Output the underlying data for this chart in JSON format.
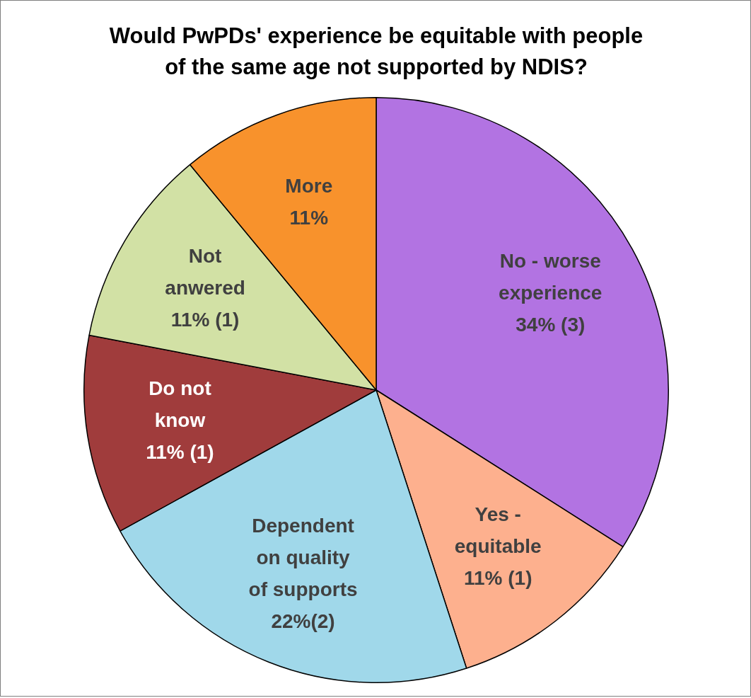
{
  "chart_data": {
    "type": "pie",
    "title": "Would PwPDs' experience be equitable with people of the same age not supported by NDIS?",
    "categories": [
      "No - worse experience",
      "Yes - equitable",
      "Dependent on quality of supports",
      "Do not know",
      "Not anwered",
      "More"
    ],
    "values": [
      34,
      11,
      22,
      11,
      11,
      11
    ],
    "colors": [
      "#b273e2",
      "#fdb08e",
      "#a0d8ea",
      "#a03c3c",
      "#d2e1a5",
      "#f8922c"
    ],
    "value_labels": [
      "34% (3)",
      "11% (1)",
      "22%(2)",
      "11% (1)",
      "11% (1)",
      "11%"
    ]
  }
}
